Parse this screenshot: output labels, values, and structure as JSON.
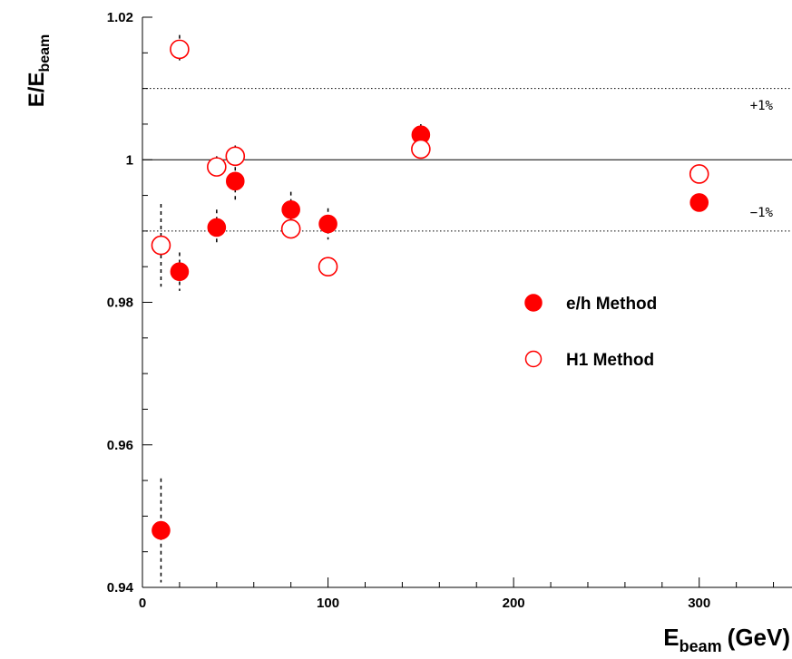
{
  "chart_data": {
    "type": "scatter",
    "xlabel": {
      "main": "E",
      "sub": "beam",
      "unit": "(GeV)"
    },
    "ylabel": {
      "main": "E/E",
      "sub": "beam"
    },
    "xlim": [
      0,
      350
    ],
    "ylim": [
      0.94,
      1.02
    ],
    "x_ticks": [
      0,
      100,
      200,
      300
    ],
    "y_ticks": [
      0.94,
      0.96,
      0.98,
      1.0,
      1.02
    ],
    "x_tick_labels": [
      "0",
      "100",
      "200",
      "300"
    ],
    "y_tick_labels": [
      "0.94",
      "0.96",
      "0.98",
      "1",
      "1.02"
    ],
    "reference_lines": [
      {
        "y": 1.01,
        "style": "dotted",
        "label": "+1%"
      },
      {
        "y": 1.0,
        "style": "solid",
        "label": ""
      },
      {
        "y": 0.99,
        "style": "dotted",
        "label": "−1%"
      }
    ],
    "series": [
      {
        "name": "e/h Method",
        "marker": "filled-circle",
        "color": "#ff0000",
        "x": [
          10,
          20,
          40,
          50,
          80,
          100,
          150,
          300
        ],
        "y": [
          0.948,
          0.9843,
          0.9905,
          0.997,
          0.993,
          0.991,
          1.0035,
          0.994
        ],
        "err": [
          0.0073,
          0.0027,
          0.0025,
          0.003,
          0.0025,
          0.0022,
          0.0015,
          0.0012
        ]
      },
      {
        "name": "H1 Method",
        "marker": "open-circle",
        "color": "#ff0000",
        "x": [
          10,
          20,
          40,
          50,
          80,
          100,
          150,
          300
        ],
        "y": [
          0.988,
          1.0155,
          0.999,
          1.0005,
          0.9903,
          0.985,
          1.0015,
          0.998
        ],
        "err": [
          0.0058,
          0.002,
          0.0015,
          0.0015,
          0.0015,
          0.0012,
          0.0012,
          0.0012
        ]
      }
    ],
    "legend": {
      "placement": "center-right",
      "entries": [
        "e/h Method",
        "H1 Method"
      ]
    },
    "grid": false
  }
}
